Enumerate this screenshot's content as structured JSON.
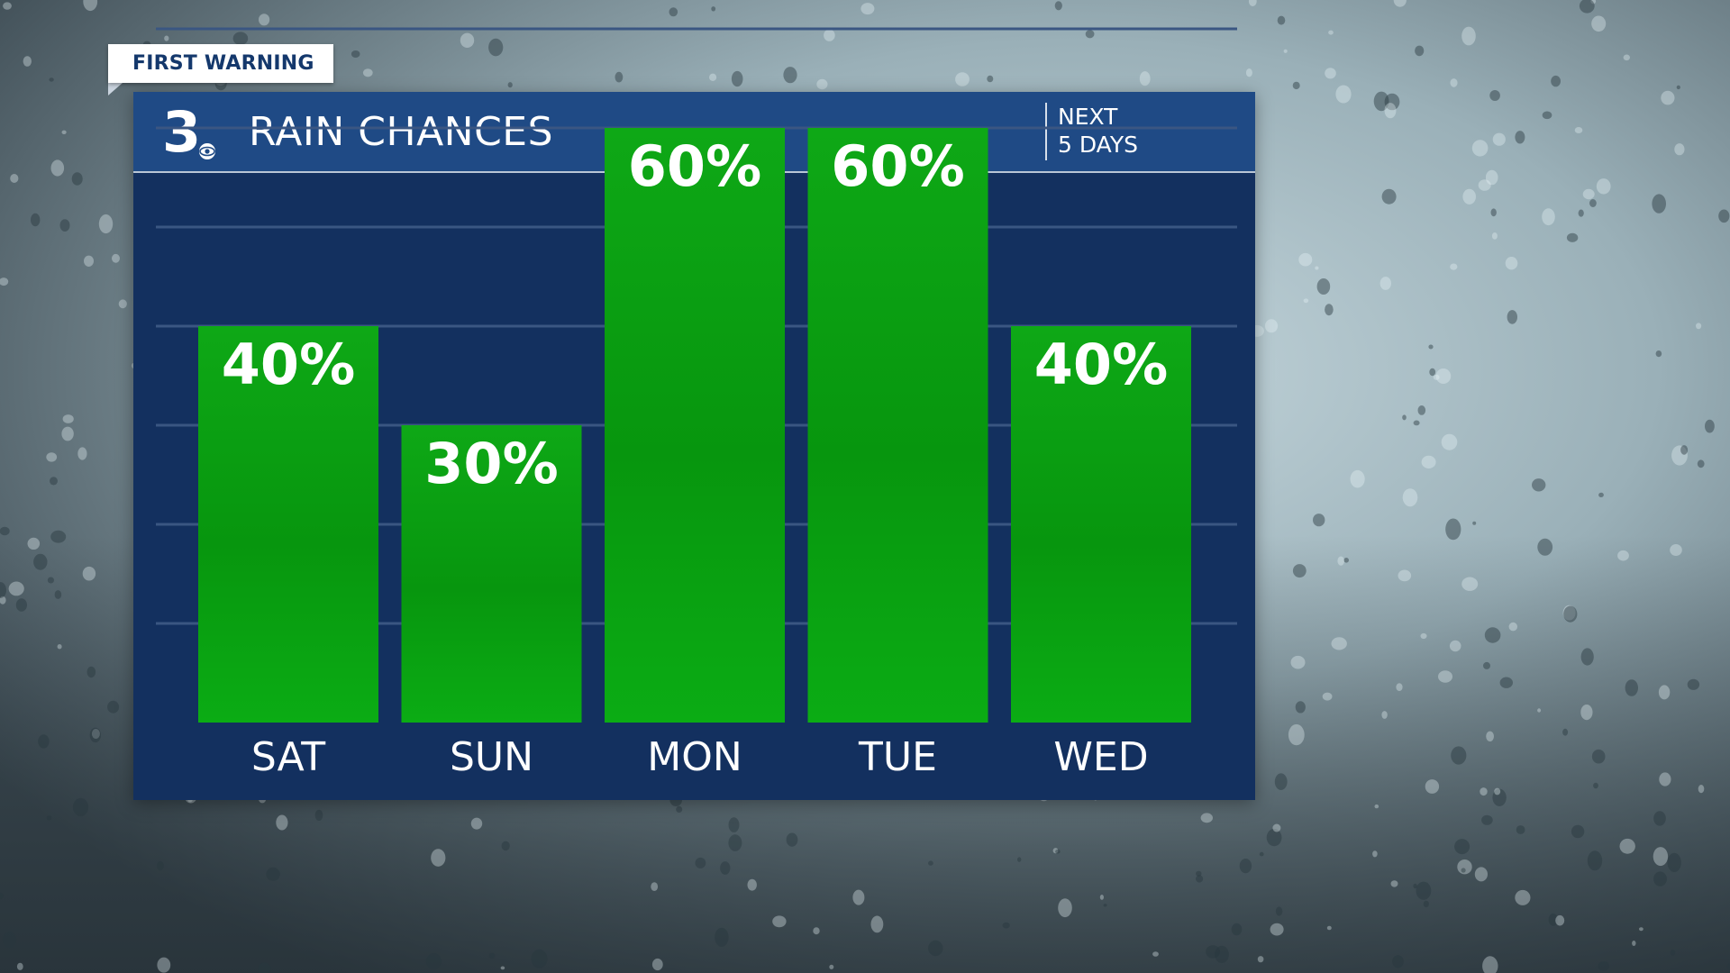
{
  "tag": {
    "label": "FIRST WARNING"
  },
  "header": {
    "logo_text": "3",
    "title": "RAIN CHANCES",
    "subtitle_line1": "NEXT",
    "subtitle_line2": "5 DAYS"
  },
  "colors": {
    "bar": "#0aa312",
    "panel": "#13305f",
    "header": "#1f4a85",
    "text": "#ffffff"
  },
  "chart_data": {
    "type": "bar",
    "categories": [
      "SAT",
      "SUN",
      "MON",
      "TUE",
      "WED"
    ],
    "values": [
      40,
      30,
      60,
      60,
      40
    ],
    "value_labels": [
      "40%",
      "30%",
      "60%",
      "60%",
      "40%"
    ],
    "unit": "%",
    "ylim": [
      0,
      100
    ],
    "grid": true,
    "title": "RAIN CHANCES"
  }
}
